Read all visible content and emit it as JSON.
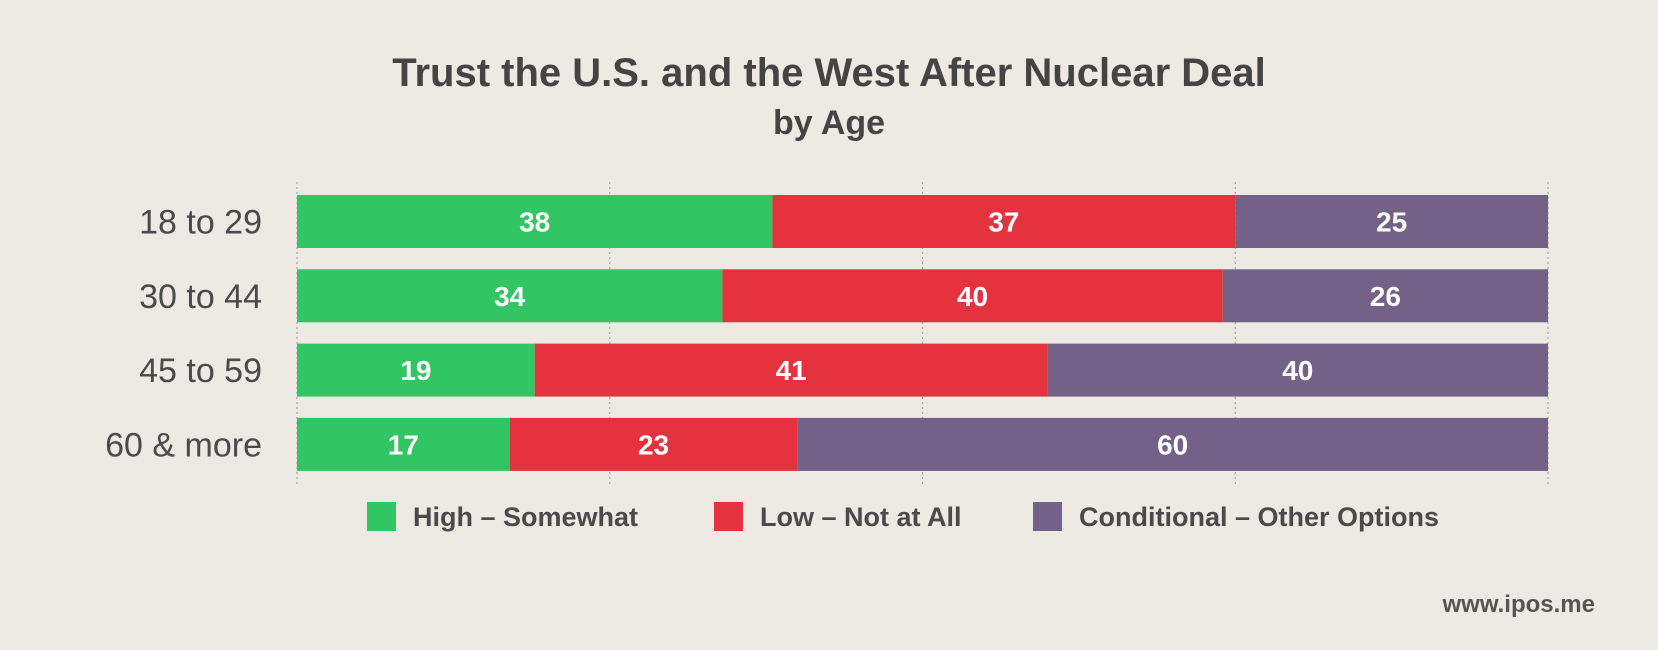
{
  "chart_data": {
    "type": "bar",
    "orientation": "horizontal",
    "stacked": true,
    "title": "Trust the U.S. and the West After Nuclear Deal",
    "subtitle": "by Age",
    "categories": [
      "18 to 29",
      "30 to 44",
      "45 to 59",
      "60 & more"
    ],
    "series": [
      {
        "name": "High – Somewhat",
        "color": "#32c564",
        "values": [
          38,
          34,
          19,
          17
        ]
      },
      {
        "name": "Low – Not at All",
        "color": "#e5323f",
        "values": [
          37,
          40,
          41,
          23
        ]
      },
      {
        "name": "Conditional – Other Options",
        "color": "#736187",
        "values": [
          25,
          26,
          40,
          60
        ]
      }
    ],
    "xlim": [
      0,
      100
    ],
    "grid": true,
    "legend_position": "bottom"
  },
  "source": "www.ipos.me"
}
